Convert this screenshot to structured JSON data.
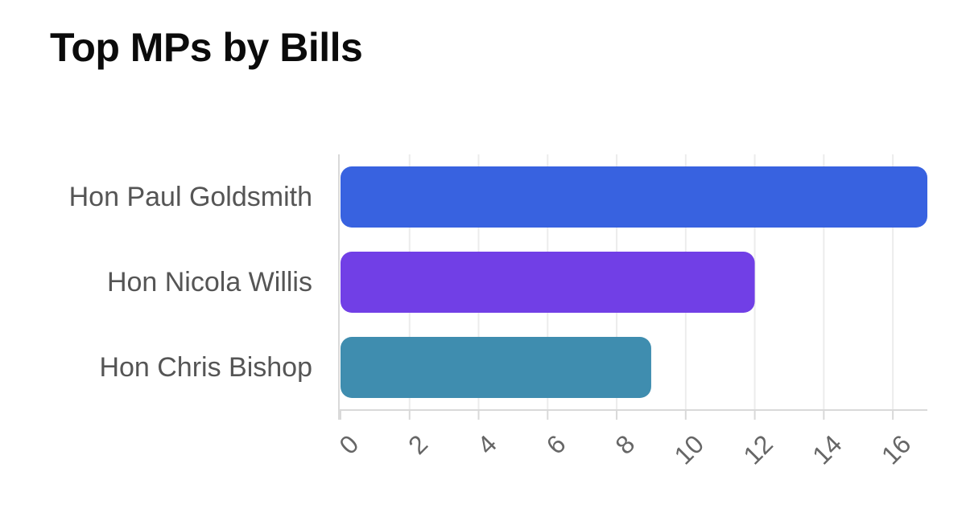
{
  "chart_data": {
    "type": "bar",
    "orientation": "horizontal",
    "title": "Top MPs by Bills",
    "xlabel": "",
    "ylabel": "",
    "categories": [
      "Hon Paul Goldsmith",
      "Hon Nicola Willis",
      "Hon Chris Bishop"
    ],
    "values": [
      17,
      12,
      9
    ],
    "xlim": [
      0,
      17
    ],
    "x_ticks": [
      0,
      2,
      4,
      6,
      8,
      10,
      12,
      14,
      16
    ],
    "grid": "vertical",
    "legend": "none",
    "bar_colors": [
      "#3862e0",
      "#713fe6",
      "#3f8daf"
    ],
    "grid_color": "#ececec",
    "axis_color": "#d9d9d9"
  }
}
